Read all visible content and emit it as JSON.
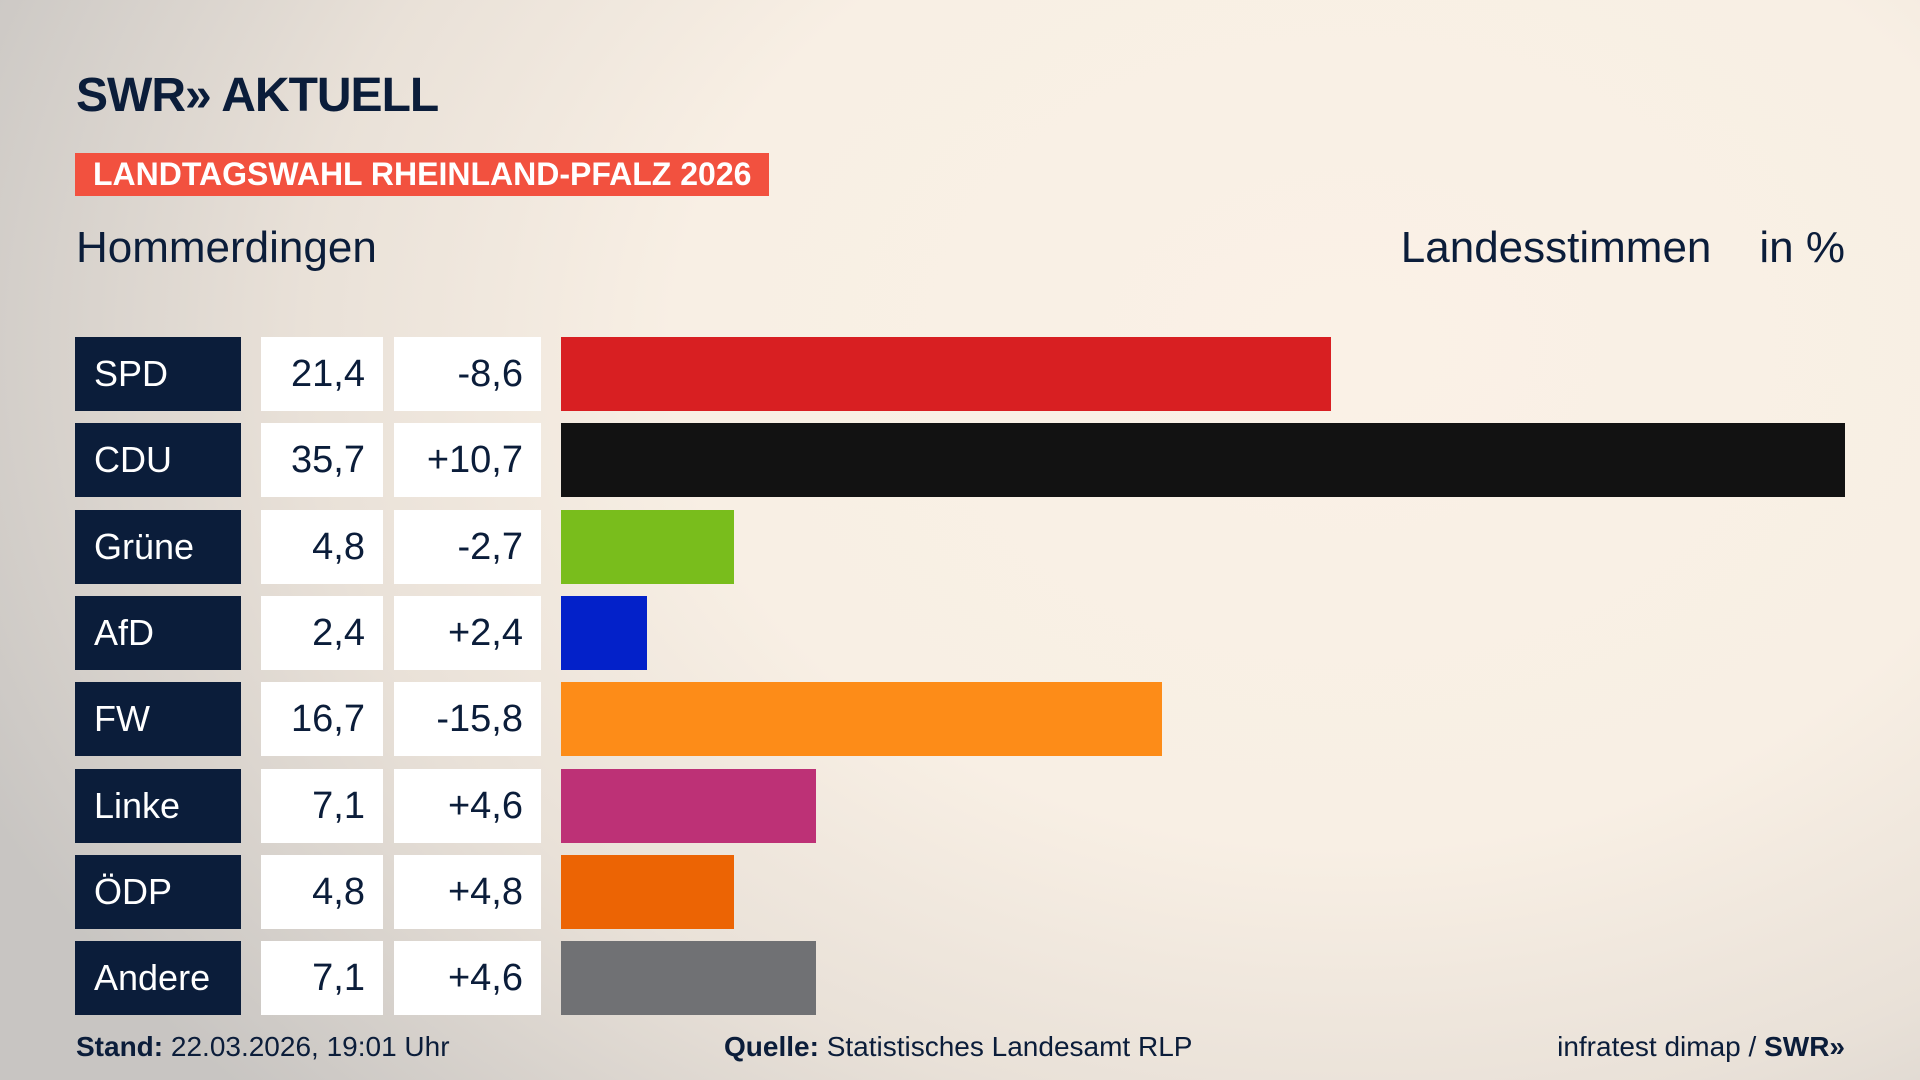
{
  "header": {
    "logo": "SWR» AKTUELL",
    "badge": "LANDTAGSWAHL RHEINLAND-PFALZ 2026",
    "region": "Hommerdingen",
    "measure": "Landesstimmen",
    "unit": "in %"
  },
  "chart_data": {
    "type": "bar",
    "orientation": "horizontal",
    "categories": [
      "SPD",
      "CDU",
      "Grüne",
      "AfD",
      "FW",
      "Linke",
      "ÖDP",
      "Andere"
    ],
    "values": [
      21.4,
      35.7,
      4.8,
      2.4,
      16.7,
      7.1,
      4.8,
      7.1
    ],
    "value_labels": [
      "21,4",
      "35,7",
      "4,8",
      "2,4",
      "16,7",
      "7,1",
      "4,8",
      "7,1"
    ],
    "diff_labels": [
      "-8,6",
      "+10,7",
      "-2,7",
      "+2,4",
      "-15,8",
      "+4,6",
      "+4,8",
      "+4,6"
    ],
    "colors": [
      "#d81f22",
      "#121212",
      "#79bd1c",
      "#0321c9",
      "#fd8c18",
      "#bd3176",
      "#ec6404",
      "#707174"
    ],
    "unit": "in %",
    "grid": false
  },
  "footer": {
    "stand_label": "Stand:",
    "stand_value": "22.03.2026, 19:01 Uhr",
    "source_label": "Quelle:",
    "source_value": "Statistisches Landesamt RLP",
    "credit": "infratest dimap /",
    "credit_logo": "SWR»"
  }
}
